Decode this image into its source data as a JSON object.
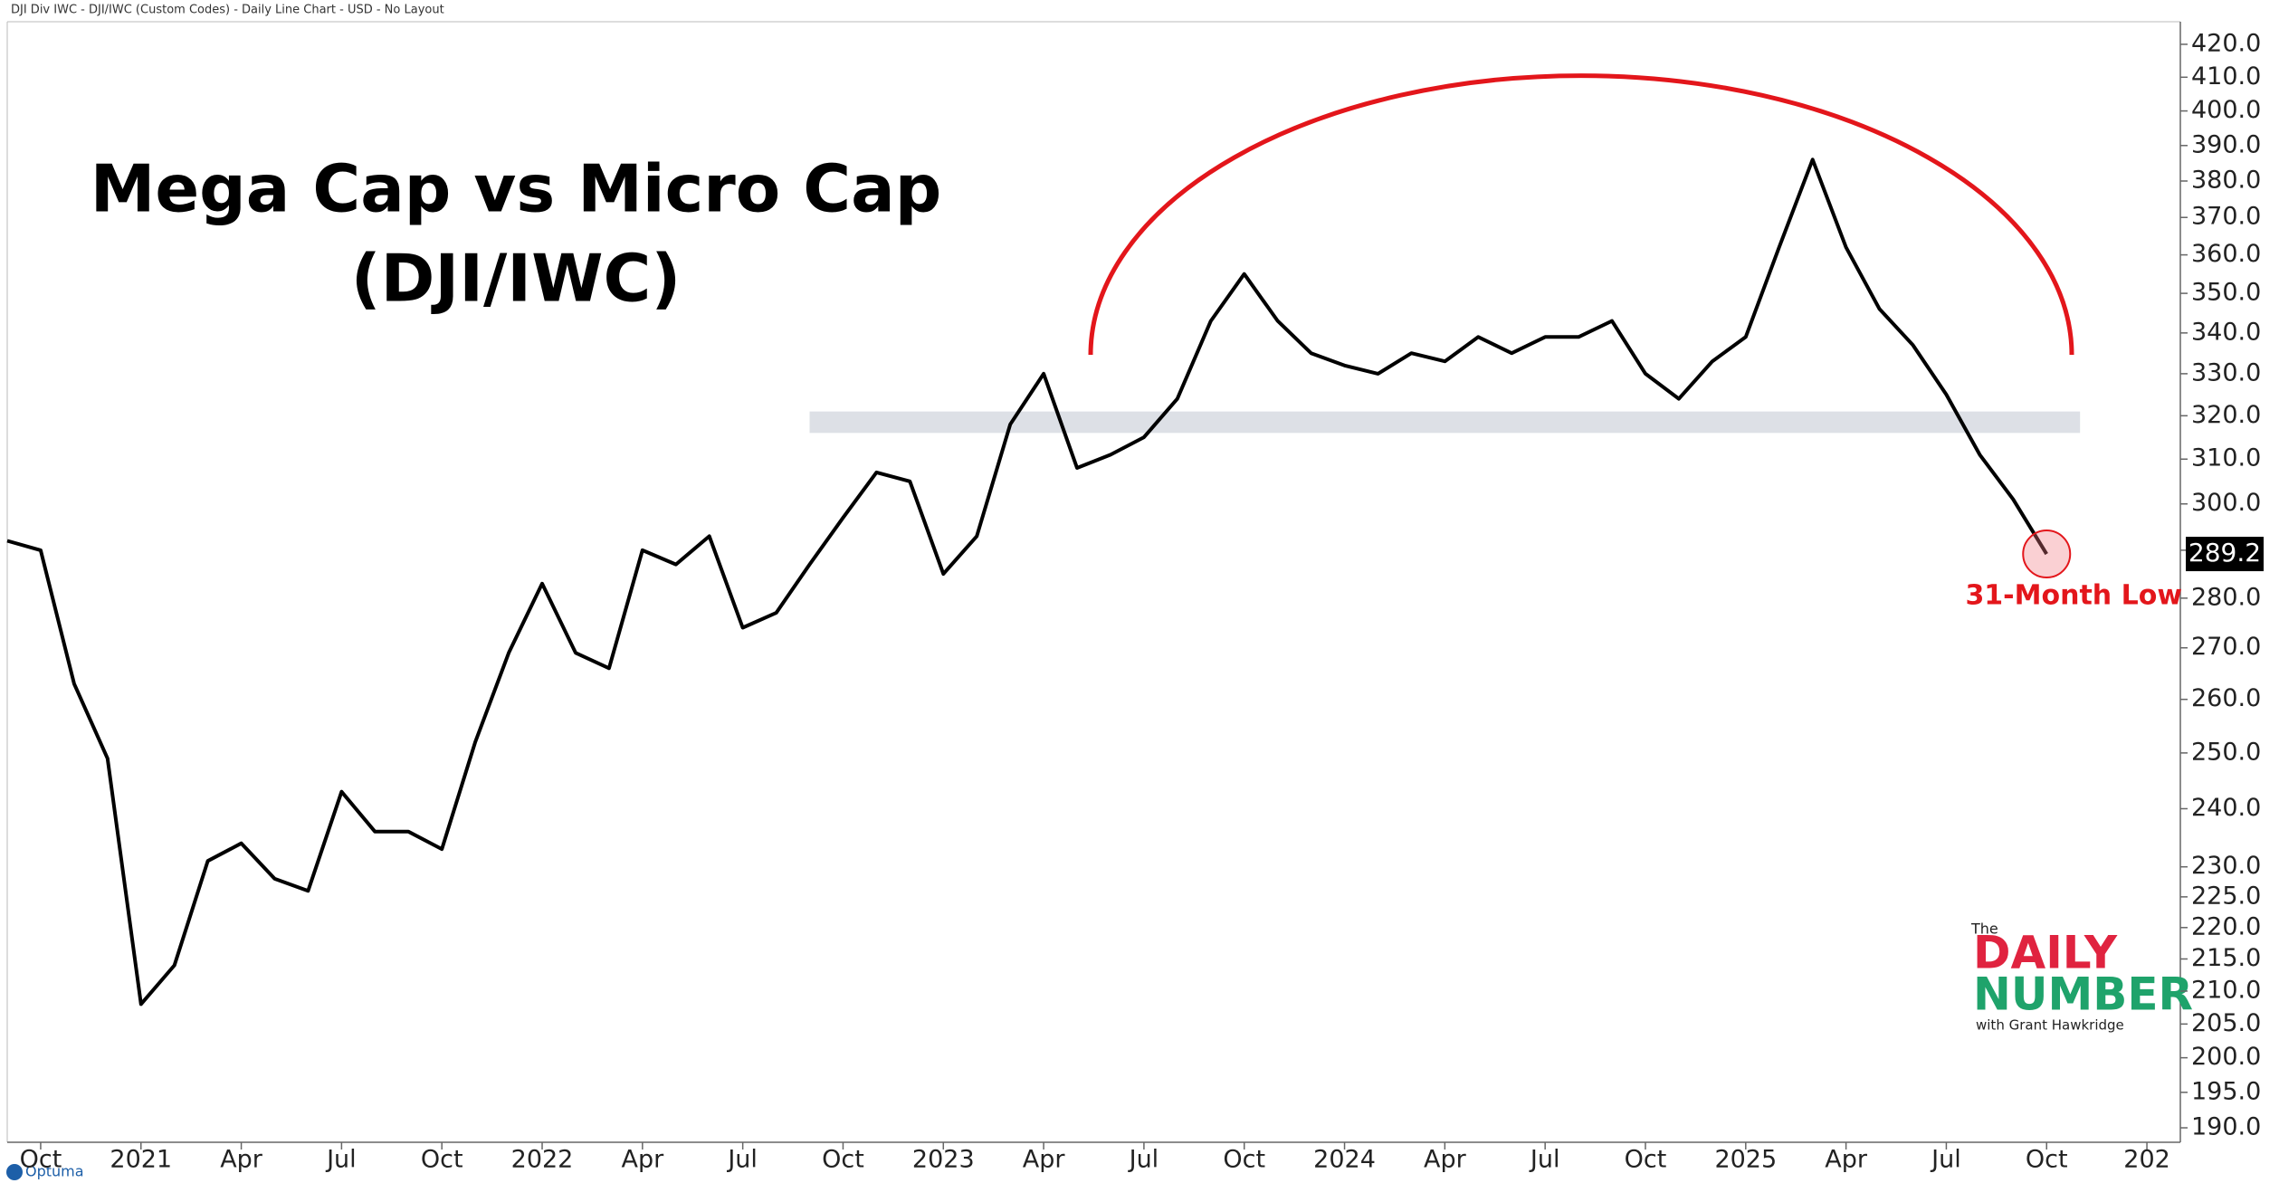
{
  "header": "DJI Div IWC - DJI/IWC (Custom Codes) - Daily Line Chart - USD - No Layout",
  "branding": {
    "the": "The",
    "daily": "DAILY",
    "number": "NUMBER",
    "byline": "with Grant Hawkridge",
    "platform": "Optuma"
  },
  "chart_data": {
    "type": "line",
    "title": "Mega Cap vs Micro Cap",
    "subtitle": "(DJI/IWC)",
    "annotation": "31-Month Low",
    "color": "#000000",
    "log_scale": true,
    "grid": false,
    "x": [
      "2020-09",
      "2020-10",
      "2020-11",
      "2020-12",
      "2021-01",
      "2021-02",
      "2021-03",
      "2021-04",
      "2021-05",
      "2021-06",
      "2021-07",
      "2021-08",
      "2021-09",
      "2021-10",
      "2021-11",
      "2021-12",
      "2022-01",
      "2022-02",
      "2022-03",
      "2022-04",
      "2022-05",
      "2022-06",
      "2022-07",
      "2022-08",
      "2022-09",
      "2022-10",
      "2022-11",
      "2022-12",
      "2023-01",
      "2023-02",
      "2023-03",
      "2023-04",
      "2023-05",
      "2023-06",
      "2023-07",
      "2023-08",
      "2023-09",
      "2023-10",
      "2023-11",
      "2023-12",
      "2024-01",
      "2024-02",
      "2024-03",
      "2024-04",
      "2024-05",
      "2024-06",
      "2024-07",
      "2024-08",
      "2024-09",
      "2024-10",
      "2024-11",
      "2024-12",
      "2025-01",
      "2025-02",
      "2025-03",
      "2025-04",
      "2025-05",
      "2025-06",
      "2025-07",
      "2025-08",
      "2025-09",
      "2025-10"
    ],
    "values": [
      292,
      290,
      263,
      249,
      208,
      214,
      231,
      234,
      228,
      226,
      243,
      236,
      236,
      233,
      252,
      269,
      283,
      269,
      266,
      290,
      287,
      293,
      274,
      277,
      287,
      297,
      307,
      305,
      285,
      293,
      318,
      330,
      308,
      311,
      315,
      324,
      343,
      355,
      343,
      335,
      332,
      330,
      335,
      333,
      339,
      335,
      339,
      339,
      343,
      330,
      324,
      333,
      339,
      362,
      386,
      362,
      346,
      337,
      325,
      311,
      301,
      289.2
    ],
    "xlim": [
      "2020-09",
      "2026-02"
    ],
    "xticks": [
      {
        "value": "2020-10",
        "label": "Oct"
      },
      {
        "value": "2021-01",
        "label": "2021"
      },
      {
        "value": "2021-04",
        "label": "Apr"
      },
      {
        "value": "2021-07",
        "label": "Jul"
      },
      {
        "value": "2021-10",
        "label": "Oct"
      },
      {
        "value": "2022-01",
        "label": "2022"
      },
      {
        "value": "2022-04",
        "label": "Apr"
      },
      {
        "value": "2022-07",
        "label": "Jul"
      },
      {
        "value": "2022-10",
        "label": "Oct"
      },
      {
        "value": "2023-01",
        "label": "2023"
      },
      {
        "value": "2023-04",
        "label": "Apr"
      },
      {
        "value": "2023-07",
        "label": "Jul"
      },
      {
        "value": "2023-10",
        "label": "Oct"
      },
      {
        "value": "2024-01",
        "label": "2024"
      },
      {
        "value": "2024-04",
        "label": "Apr"
      },
      {
        "value": "2024-07",
        "label": "Jul"
      },
      {
        "value": "2024-10",
        "label": "Oct"
      },
      {
        "value": "2025-01",
        "label": "2025"
      },
      {
        "value": "2025-04",
        "label": "Apr"
      },
      {
        "value": "2025-07",
        "label": "Jul"
      },
      {
        "value": "2025-10",
        "label": "Oct"
      },
      {
        "value": "2026-01",
        "label": "202"
      }
    ],
    "ylim": [
      188,
      427
    ],
    "yticks": [
      {
        "value": 190,
        "label": "190.0"
      },
      {
        "value": 195,
        "label": "195.0"
      },
      {
        "value": 200,
        "label": "200.0"
      },
      {
        "value": 205,
        "label": "205.0"
      },
      {
        "value": 210,
        "label": "210.0"
      },
      {
        "value": 215,
        "label": "215.0"
      },
      {
        "value": 220,
        "label": "220.0"
      },
      {
        "value": 225,
        "label": "225.0"
      },
      {
        "value": 230,
        "label": "230.0"
      },
      {
        "value": 240,
        "label": "240.0"
      },
      {
        "value": 250,
        "label": "250.0"
      },
      {
        "value": 260,
        "label": "260.0"
      },
      {
        "value": 270,
        "label": "270.0"
      },
      {
        "value": 280,
        "label": "280.0"
      },
      {
        "value": 290,
        "label": "290.0"
      },
      {
        "value": 300,
        "label": "300.0"
      },
      {
        "value": 310,
        "label": "310.0"
      },
      {
        "value": 320,
        "label": "320.0"
      },
      {
        "value": 330,
        "label": "330.0"
      },
      {
        "value": 340,
        "label": "340.0"
      },
      {
        "value": 350,
        "label": "350.0"
      },
      {
        "value": 360,
        "label": "360.0"
      },
      {
        "value": 370,
        "label": "370.0"
      },
      {
        "value": 380,
        "label": "380.0"
      },
      {
        "value": 390,
        "label": "390.0"
      },
      {
        "value": 400,
        "label": "400.0"
      },
      {
        "value": 410,
        "label": "410.0"
      },
      {
        "value": 420,
        "label": "420.0"
      }
    ],
    "highlight_band": {
      "from": 316,
      "to": 321,
      "start": "2022-09",
      "end": "2025-11",
      "color": "#dde0e6"
    }
  }
}
